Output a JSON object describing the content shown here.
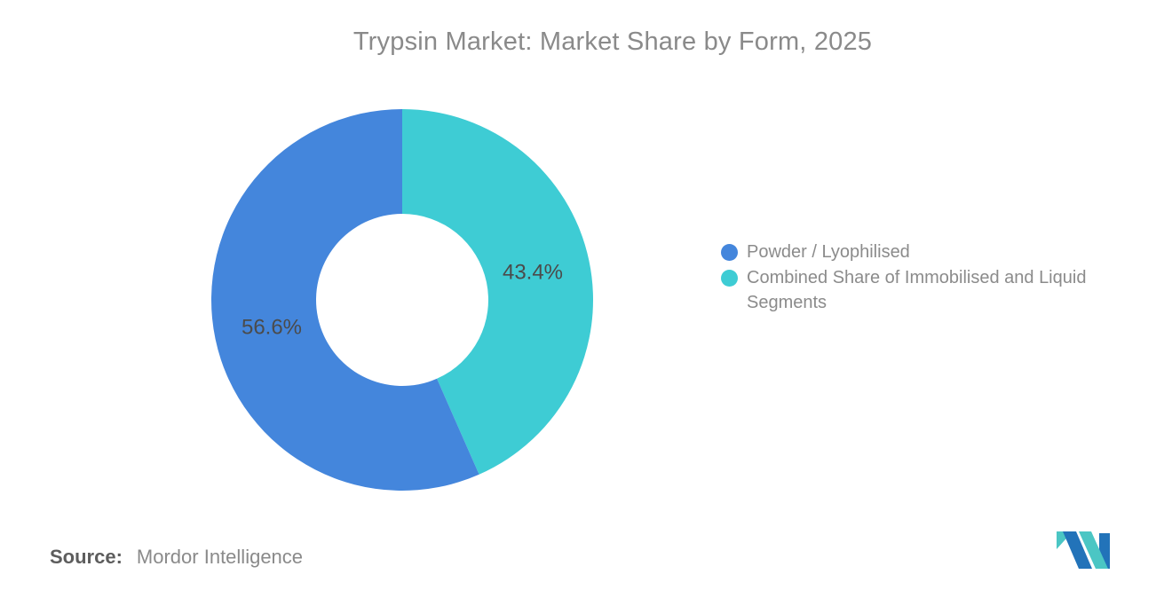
{
  "title": "Trypsin Market: Market Share by Form, 2025",
  "chart_data": {
    "type": "pie",
    "subtype": "donut",
    "title": "Trypsin Market: Market Share by Form, 2025",
    "categories": [
      "Powder / Lyophilised",
      "Combined Share of Immobilised and Liquid Segments"
    ],
    "values": [
      56.6,
      43.4
    ],
    "unit": "%",
    "slice_labels": [
      "56.6%",
      "43.4%"
    ],
    "colors": [
      "#4486dc",
      "#3eccd4"
    ],
    "label_color": "#4b4b4b",
    "start_angle_deg": 0,
    "direction": "clockwise",
    "clockwise_order_from_top": [
      "Combined Share of Immobilised and Liquid Segments",
      "Powder / Lyophilised"
    ],
    "inner_radius_ratio": 0.45,
    "legend_position": "right",
    "grid": false
  },
  "legend": {
    "items": [
      {
        "label": "Powder / Lyophilised",
        "color": "#4486dc"
      },
      {
        "label": "Combined Share of Immobilised and Liquid Segments",
        "color": "#3eccd4"
      }
    ]
  },
  "source": {
    "label": "Source:",
    "value": "Mordor Intelligence"
  },
  "logo": {
    "name": "mordor-intelligence-logo",
    "teal": "#4bc6c4",
    "blue": "#2273b9"
  }
}
